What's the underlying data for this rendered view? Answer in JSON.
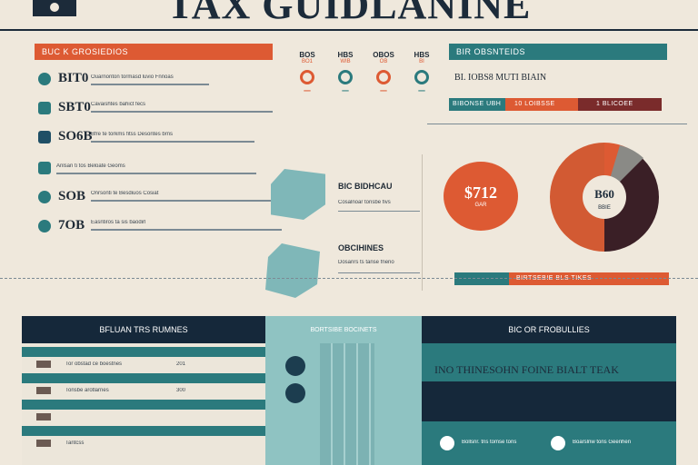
{
  "header": {
    "title": "TAX GUIDLANINE"
  },
  "colors": {
    "orange": "#dd5a33",
    "teal": "#2b7a7d",
    "navy": "#15283a",
    "maroon": "#7a2b2b",
    "bg": "#efe8dc"
  },
  "left": {
    "banner": "BUC K GROSIEDIOS",
    "rows": [
      {
        "value": "BIT0",
        "text": "Ouarnonton tormasd luvio Fnnoas",
        "icon": "chat-icon"
      },
      {
        "value": "SBT0",
        "text": "Cavaishtes bahict fecs",
        "icon": "document-icon"
      },
      {
        "value": "SO6B",
        "text": "Bfre te torkms fitss Desontes brns",
        "icon": "chart-icon"
      },
      {
        "value": "",
        "text": "Anlsan ti tos Beloate Geoms",
        "icon": "folder-icon"
      },
      {
        "value": "SOB",
        "text": "Onrsonti te Besdiuos Cosiat",
        "icon": "globe-icon"
      },
      {
        "value": "7OB",
        "text": "Easntiros ta sis baodirl",
        "icon": "bell-icon"
      }
    ]
  },
  "stats": [
    {
      "label": "BOS",
      "sub": "BO1"
    },
    {
      "label": "HBS",
      "sub": "WIB"
    },
    {
      "label": "OBOS",
      "sub": "OB"
    },
    {
      "label": "HBS",
      "sub": "BI"
    }
  ],
  "right": {
    "banner": "BIR OBSNTEIDS",
    "subhead": "BI. IOBS8 MUTI BIAIN",
    "bar_left": "BIBONSE UBH",
    "bar_mid": "10 LOIBSSE",
    "bar_right": "1 BLICOEE",
    "bubble_value": "$712",
    "bubble_sub": "GAR",
    "pie_center": "B60",
    "pie_sub": "BBIE",
    "lower_banner": "BIRTSEBIE BLS TIKES"
  },
  "middle": {
    "item1_title": "BIC BIDHCAU",
    "item1_text": "Cosalnoar tonsbe fivs",
    "item2_title": "OBCIHINES",
    "item2_text": "Dosanrs ts tanse fneno"
  },
  "bottom": {
    "left_header": "BFLUAN TRS RUMNES",
    "mid_header": "BORTSIBE BOCINETS",
    "right_header": "BIC OR FROBULLIES",
    "right_title": "INO THINESOHN FOINE BIALT TEAK",
    "table_rows": [
      {
        "text": "Tor obstad ce boestnes",
        "val": "201"
      },
      {
        "text": "Tonsbe arotlarnes",
        "val": "300"
      },
      {
        "text": "",
        "val": ""
      },
      {
        "text": "Tantcss",
        "val": ""
      }
    ],
    "right_items": [
      {
        "text": "Bollsnr. tns tomse tons"
      },
      {
        "text": "Boarslnw tons Geenhen"
      }
    ]
  }
}
